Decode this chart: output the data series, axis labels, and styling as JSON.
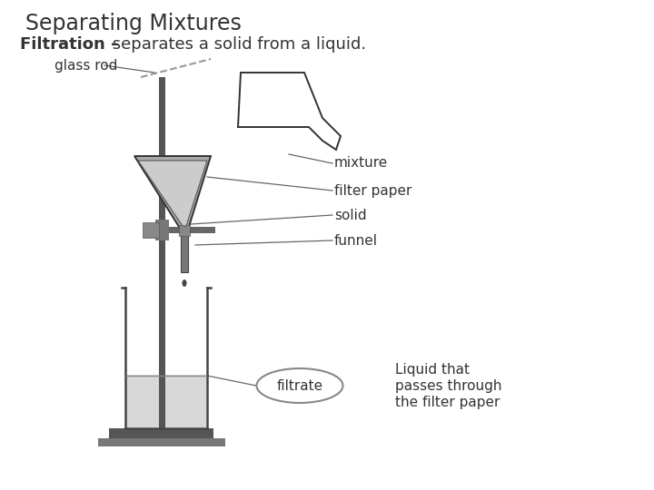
{
  "title": "Separating Mixtures",
  "subtitle_bold": "Filtration –",
  "subtitle_regular": " separates a solid from a liquid.",
  "bg_color": "#ffffff",
  "line_color": "#333333",
  "label_color": "#222222",
  "gray_fill": "#aaaaaa",
  "light_gray": "#cccccc",
  "labels": {
    "glass_rod": "glass rod",
    "mixture": "mixture",
    "filter_paper": "filter paper",
    "solid": "solid",
    "funnel": "funnel",
    "filtrate": "filtrate",
    "liquid_line1": "Liquid that",
    "liquid_line2": "passes through",
    "liquid_line3": "the filter paper"
  },
  "title_fontsize": 17,
  "subtitle_fontsize": 13,
  "label_fontsize": 11
}
